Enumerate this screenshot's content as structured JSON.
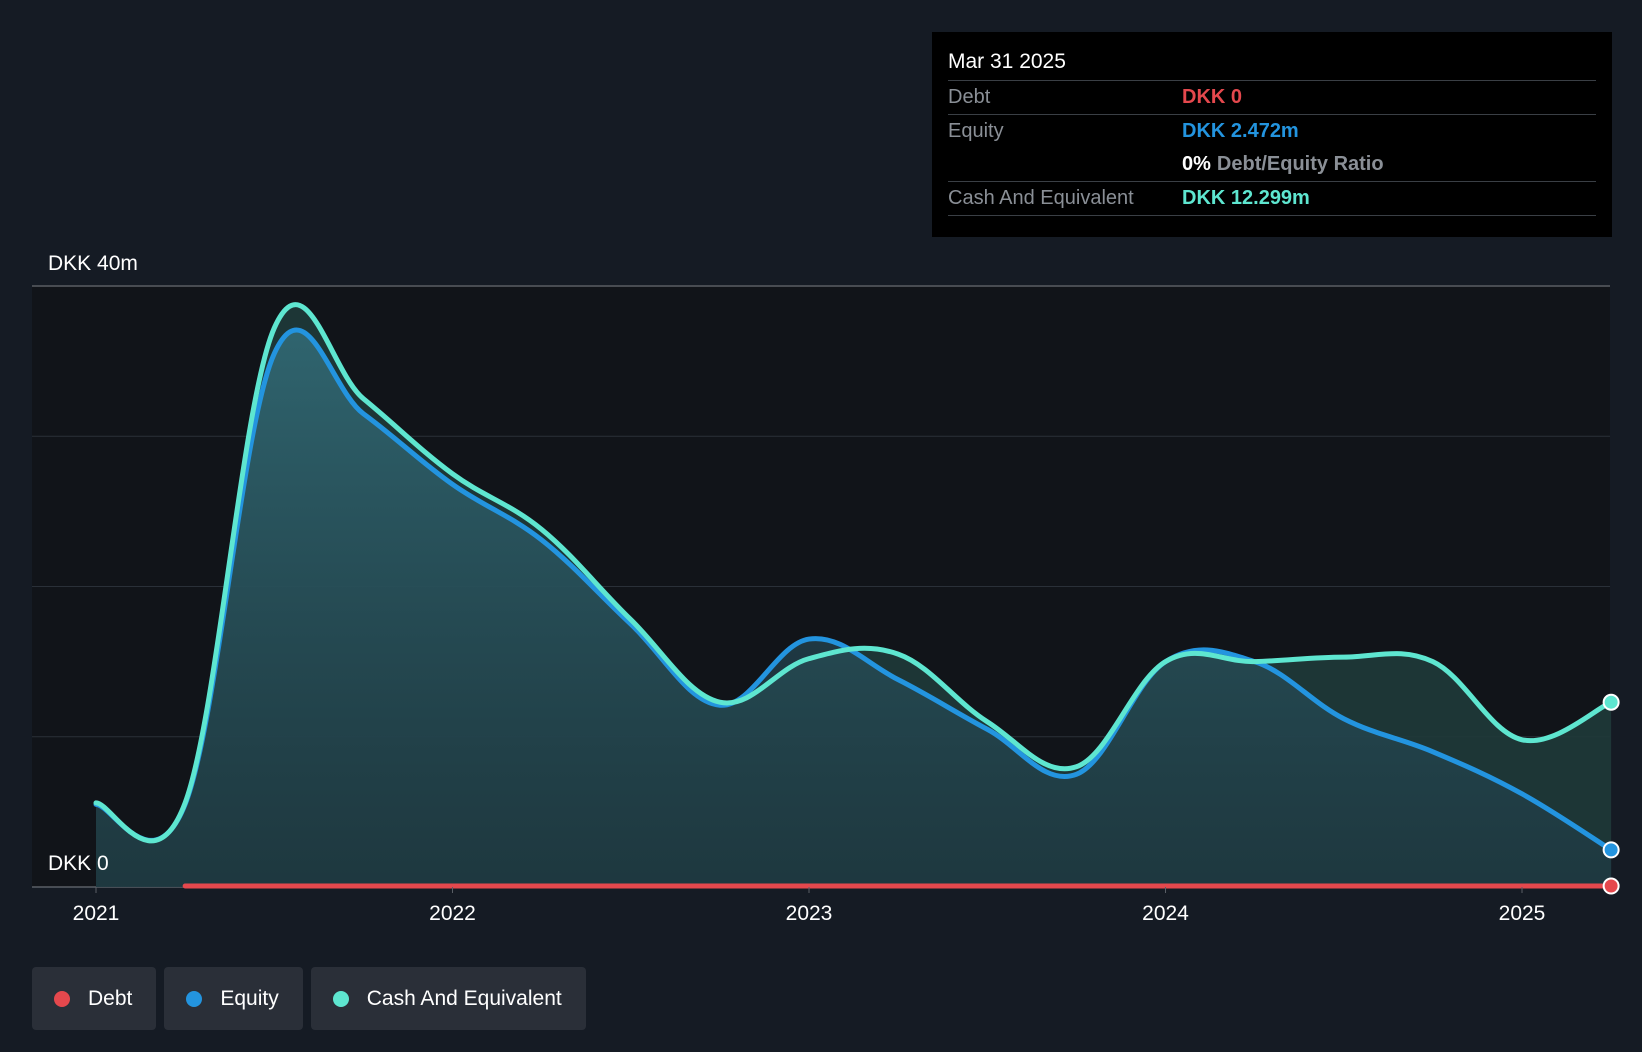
{
  "chart_data": {
    "type": "area",
    "y_top_label": "DKK 40m",
    "y_bottom_label": "DKK 0",
    "ylim": [
      0,
      40
    ],
    "x_ticks": [
      "2021",
      "2022",
      "2023",
      "2024",
      "2025"
    ],
    "grid": true,
    "legend_position": "bottom-left",
    "series": [
      {
        "name": "Debt",
        "color": "#e5484d",
        "points": [
          [
            2021.25,
            0
          ],
          [
            2025.25,
            0
          ]
        ]
      },
      {
        "name": "Equity",
        "color": "#2394df",
        "points": [
          [
            2021.0,
            5.5
          ],
          [
            2021.25,
            5.5
          ],
          [
            2021.5,
            35.5
          ],
          [
            2021.75,
            31.5
          ],
          [
            2022.0,
            26.8
          ],
          [
            2022.25,
            23.1
          ],
          [
            2022.5,
            17.5
          ],
          [
            2022.75,
            12.1
          ],
          [
            2023.0,
            16.5
          ],
          [
            2023.25,
            13.8
          ],
          [
            2023.5,
            10.5
          ],
          [
            2023.75,
            7.5
          ],
          [
            2024.0,
            15.0
          ],
          [
            2024.25,
            15.0
          ],
          [
            2024.5,
            11.2
          ],
          [
            2024.75,
            9.0
          ],
          [
            2025.0,
            6.2
          ],
          [
            2025.25,
            2.472
          ]
        ]
      },
      {
        "name": "Cash And Equivalent",
        "color": "#5ee6d0",
        "points": [
          [
            2021.0,
            5.6
          ],
          [
            2021.25,
            5.6
          ],
          [
            2021.5,
            37.2
          ],
          [
            2021.75,
            32.5
          ],
          [
            2022.0,
            27.5
          ],
          [
            2022.25,
            23.8
          ],
          [
            2022.5,
            17.8
          ],
          [
            2022.75,
            12.3
          ],
          [
            2023.0,
            15.2
          ],
          [
            2023.25,
            15.5
          ],
          [
            2023.5,
            11.0
          ],
          [
            2023.75,
            8.0
          ],
          [
            2024.0,
            15.0
          ],
          [
            2024.25,
            15.0
          ],
          [
            2024.5,
            15.3
          ],
          [
            2024.75,
            15.0
          ],
          [
            2025.0,
            9.8
          ],
          [
            2025.25,
            12.299
          ]
        ]
      }
    ]
  },
  "tooltip": {
    "date": "Mar 31 2025",
    "debt_label": "Debt",
    "debt_value": "DKK 0",
    "equity_label": "Equity",
    "equity_value": "DKK 2.472m",
    "ratio_value": "0%",
    "ratio_label": "Debt/Equity Ratio",
    "cash_label": "Cash And Equivalent",
    "cash_value": "DKK 12.299m"
  },
  "legend": [
    {
      "label": "Debt",
      "color": "#e5484d"
    },
    {
      "label": "Equity",
      "color": "#2394df"
    },
    {
      "label": "Cash And Equivalent",
      "color": "#5ee6d0"
    }
  ]
}
